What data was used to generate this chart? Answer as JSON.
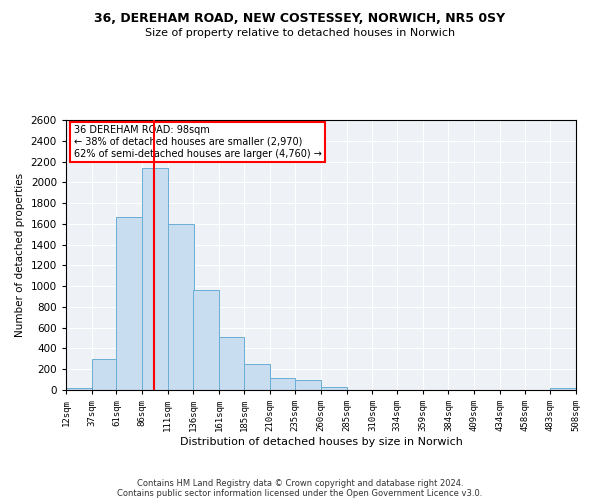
{
  "title1": "36, DEREHAM ROAD, NEW COSTESSEY, NORWICH, NR5 0SY",
  "title2": "Size of property relative to detached houses in Norwich",
  "xlabel": "Distribution of detached houses by size in Norwich",
  "ylabel": "Number of detached properties",
  "bin_edges": [
    12,
    37,
    61,
    86,
    111,
    136,
    161,
    185,
    210,
    235,
    260,
    285,
    310,
    334,
    359,
    384,
    409,
    434,
    458,
    483,
    508
  ],
  "bar_heights": [
    20,
    300,
    1670,
    2140,
    1600,
    960,
    510,
    250,
    120,
    100,
    30,
    0,
    0,
    0,
    0,
    0,
    0,
    0,
    0,
    20
  ],
  "bar_color": "#c8ddef",
  "bar_edge_color": "#6aaed6",
  "vline_x": 98,
  "vline_color": "red",
  "ylim": [
    0,
    2600
  ],
  "yticks": [
    0,
    200,
    400,
    600,
    800,
    1000,
    1200,
    1400,
    1600,
    1800,
    2000,
    2200,
    2400,
    2600
  ],
  "annotation_title": "36 DEREHAM ROAD: 98sqm",
  "annotation_line1": "← 38% of detached houses are smaller (2,970)",
  "annotation_line2": "62% of semi-detached houses are larger (4,760) →",
  "annotation_box_color": "white",
  "annotation_box_edge_color": "red",
  "tick_labels": [
    "12sqm",
    "37sqm",
    "61sqm",
    "86sqm",
    "111sqm",
    "136sqm",
    "161sqm",
    "185sqm",
    "210sqm",
    "235sqm",
    "260sqm",
    "285sqm",
    "310sqm",
    "334sqm",
    "359sqm",
    "384sqm",
    "409sqm",
    "434sqm",
    "458sqm",
    "483sqm",
    "508sqm"
  ],
  "footer1": "Contains HM Land Registry data © Crown copyright and database right 2024.",
  "footer2": "Contains public sector information licensed under the Open Government Licence v3.0.",
  "plot_bg_color": "#eef2f7"
}
